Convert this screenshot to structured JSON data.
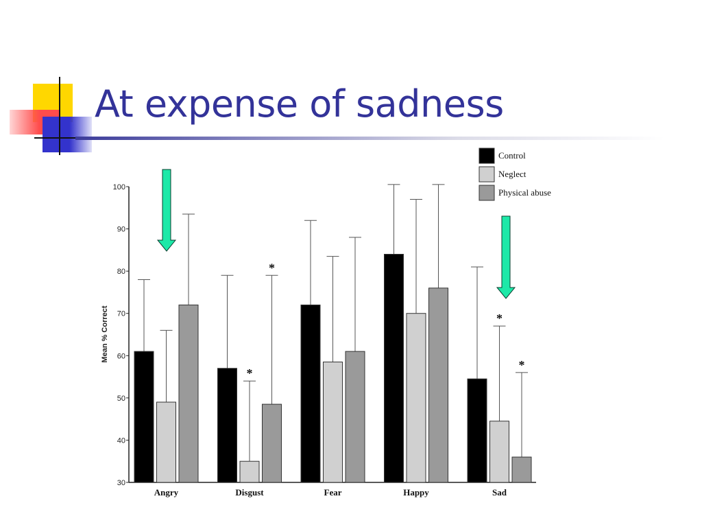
{
  "slide": {
    "title": "At expense of sadness"
  },
  "colors": {
    "title": "#333399",
    "control": "#000000",
    "neglect": "#d0d0d0",
    "physical_abuse": "#9a9a9a",
    "arrow": "#1de9a8"
  },
  "chart_data": {
    "type": "bar",
    "title": "",
    "xlabel": "",
    "ylabel": "Mean % Correct",
    "ylim": [
      30,
      100
    ],
    "yticks": [
      30,
      40,
      50,
      60,
      70,
      80,
      90,
      100
    ],
    "grid": false,
    "legend_position": "top-right",
    "categories": [
      "Angry",
      "Disgust",
      "Fear",
      "Happy",
      "Sad"
    ],
    "series": [
      {
        "name": "Control",
        "color": "#000000",
        "values": [
          61,
          57,
          72,
          84,
          54.5
        ],
        "error_upper": [
          78,
          79,
          92,
          100.5,
          81
        ],
        "significant": [
          false,
          false,
          false,
          false,
          false
        ]
      },
      {
        "name": "Neglect",
        "color": "#d0d0d0",
        "values": [
          49,
          35,
          58.5,
          70,
          44.5
        ],
        "error_upper": [
          66,
          54,
          83.5,
          97,
          67
        ],
        "significant": [
          false,
          true,
          false,
          false,
          true
        ]
      },
      {
        "name": "Physical abuse",
        "color": "#9a9a9a",
        "values": [
          72,
          48.5,
          61,
          76,
          36
        ],
        "error_upper": [
          93.5,
          79,
          88,
          100.5,
          56
        ],
        "significant": [
          false,
          true,
          false,
          false,
          true
        ]
      }
    ],
    "significance_marker": "*",
    "annotations": [
      {
        "type": "down-arrow",
        "category": "Angry"
      },
      {
        "type": "down-arrow",
        "category": "Sad"
      }
    ]
  }
}
